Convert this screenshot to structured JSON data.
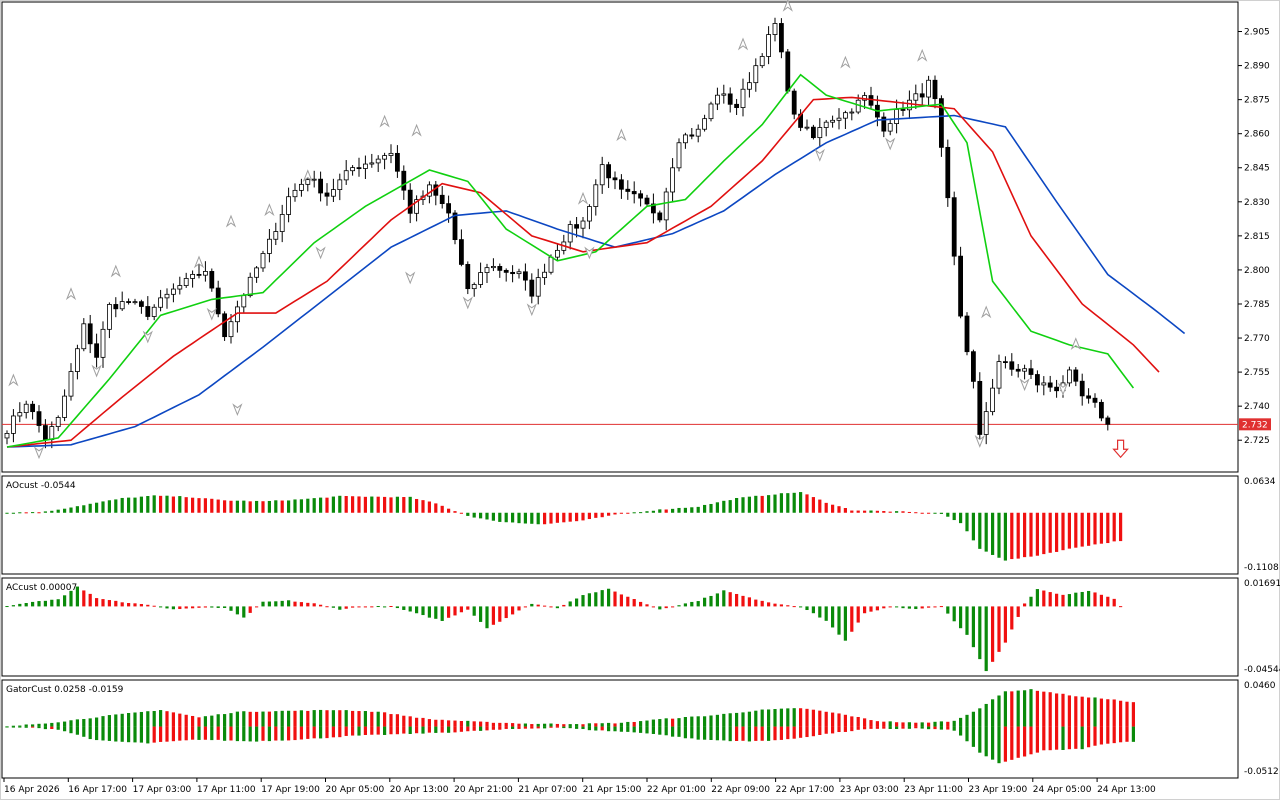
{
  "colors": {
    "background": "#ffffff",
    "frame": "#000000",
    "bull_body": "#ffffff",
    "bear_body": "#000000",
    "candle_outline": "#000000",
    "jaw": "#0c47c2",
    "teeth": "#e01010",
    "lips": "#10d010",
    "histogram_up": "#0a8a0a",
    "histogram_down": "#f01010",
    "price_line": "#e03030",
    "fractal": "#a0a0a0",
    "sell_arrow": "#e03030"
  },
  "chart_data": [
    {
      "type": "candlestick",
      "name": "price",
      "ylim": [
        2.711,
        2.918
      ],
      "y_ticks": [
        "2.905",
        "2.890",
        "2.875",
        "2.860",
        "2.845",
        "2.830",
        "2.815",
        "2.800",
        "2.785",
        "2.770",
        "2.755",
        "2.740",
        "2.725"
      ],
      "current_price": {
        "value": 2.732,
        "label": "2.732"
      },
      "anchors": [
        [
          0,
          2.73
        ],
        [
          3,
          2.742
        ],
        [
          6,
          2.726
        ],
        [
          8,
          2.734
        ],
        [
          12,
          2.775
        ],
        [
          14,
          2.762
        ],
        [
          16,
          2.784
        ],
        [
          19,
          2.786
        ],
        [
          22,
          2.781
        ],
        [
          26,
          2.791
        ],
        [
          31,
          2.8
        ],
        [
          34,
          2.772
        ],
        [
          36,
          2.784
        ],
        [
          38,
          2.795
        ],
        [
          41,
          2.812
        ],
        [
          44,
          2.832
        ],
        [
          47,
          2.841
        ],
        [
          50,
          2.833
        ],
        [
          54,
          2.845
        ],
        [
          57,
          2.848
        ],
        [
          60,
          2.852
        ],
        [
          63,
          2.826
        ],
        [
          66,
          2.836
        ],
        [
          69,
          2.825
        ],
        [
          72,
          2.79
        ],
        [
          75,
          2.802
        ],
        [
          80,
          2.798
        ],
        [
          82,
          2.79
        ],
        [
          85,
          2.806
        ],
        [
          88,
          2.818
        ],
        [
          90,
          2.821
        ],
        [
          93,
          2.846
        ],
        [
          96,
          2.834
        ],
        [
          98,
          2.832
        ],
        [
          102,
          2.824
        ],
        [
          105,
          2.858
        ],
        [
          108,
          2.861
        ],
        [
          111,
          2.878
        ],
        [
          114,
          2.872
        ],
        [
          117,
          2.89
        ],
        [
          120,
          2.908
        ],
        [
          123,
          2.867
        ],
        [
          126,
          2.858
        ],
        [
          128,
          2.866
        ],
        [
          131,
          2.869
        ],
        [
          134,
          2.876
        ],
        [
          137,
          2.863
        ],
        [
          140,
          2.872
        ],
        [
          143,
          2.878
        ],
        [
          144,
          2.882
        ],
        [
          145,
          2.874
        ],
        [
          147,
          2.83
        ],
        [
          149,
          2.78
        ],
        [
          151,
          2.75
        ],
        [
          152,
          2.726
        ],
        [
          153,
          2.738
        ],
        [
          155,
          2.76
        ],
        [
          157,
          2.756
        ],
        [
          159,
          2.756
        ],
        [
          161,
          2.75
        ],
        [
          164,
          2.748
        ],
        [
          166,
          2.754
        ],
        [
          168,
          2.744
        ],
        [
          170,
          2.74
        ],
        [
          172,
          2.732
        ]
      ],
      "jaw_anchors": [
        [
          0,
          2.722
        ],
        [
          10,
          2.723
        ],
        [
          20,
          2.731
        ],
        [
          30,
          2.745
        ],
        [
          40,
          2.766
        ],
        [
          50,
          2.788
        ],
        [
          60,
          2.81
        ],
        [
          70,
          2.824
        ],
        [
          78,
          2.826
        ],
        [
          86,
          2.818
        ],
        [
          95,
          2.81
        ],
        [
          104,
          2.816
        ],
        [
          112,
          2.826
        ],
        [
          120,
          2.842
        ],
        [
          128,
          2.856
        ],
        [
          136,
          2.866
        ],
        [
          148,
          2.868
        ],
        [
          156,
          2.863
        ],
        [
          164,
          2.83
        ],
        [
          172,
          2.798
        ],
        [
          180,
          2.781
        ],
        [
          184,
          2.772
        ]
      ],
      "teeth_anchors": [
        [
          0,
          2.722
        ],
        [
          10,
          2.725
        ],
        [
          18,
          2.744
        ],
        [
          26,
          2.762
        ],
        [
          36,
          2.781
        ],
        [
          42,
          2.781
        ],
        [
          50,
          2.795
        ],
        [
          60,
          2.822
        ],
        [
          68,
          2.838
        ],
        [
          74,
          2.834
        ],
        [
          82,
          2.815
        ],
        [
          90,
          2.808
        ],
        [
          100,
          2.812
        ],
        [
          110,
          2.828
        ],
        [
          118,
          2.848
        ],
        [
          126,
          2.875
        ],
        [
          132,
          2.876
        ],
        [
          148,
          2.871
        ],
        [
          154,
          2.852
        ],
        [
          160,
          2.815
        ],
        [
          168,
          2.785
        ],
        [
          176,
          2.767
        ],
        [
          180,
          2.755
        ]
      ],
      "lips_anchors": [
        [
          0,
          2.722
        ],
        [
          8,
          2.726
        ],
        [
          16,
          2.752
        ],
        [
          24,
          2.78
        ],
        [
          32,
          2.787
        ],
        [
          40,
          2.79
        ],
        [
          48,
          2.812
        ],
        [
          56,
          2.828
        ],
        [
          66,
          2.844
        ],
        [
          72,
          2.839
        ],
        [
          78,
          2.818
        ],
        [
          86,
          2.804
        ],
        [
          92,
          2.808
        ],
        [
          100,
          2.828
        ],
        [
          106,
          2.831
        ],
        [
          112,
          2.848
        ],
        [
          118,
          2.864
        ],
        [
          124,
          2.886
        ],
        [
          128,
          2.877
        ],
        [
          136,
          2.87
        ],
        [
          146,
          2.873
        ],
        [
          150,
          2.856
        ],
        [
          154,
          2.795
        ],
        [
          160,
          2.773
        ],
        [
          166,
          2.767
        ],
        [
          172,
          2.763
        ],
        [
          176,
          2.748
        ]
      ],
      "fractals_up": [
        [
          1,
          2.752
        ],
        [
          10,
          2.79
        ],
        [
          17,
          2.8
        ],
        [
          30,
          2.804
        ],
        [
          35,
          2.822
        ],
        [
          41,
          2.827
        ],
        [
          47,
          2.842
        ],
        [
          59,
          2.866
        ],
        [
          64,
          2.862
        ],
        [
          90,
          2.832
        ],
        [
          96,
          2.86
        ],
        [
          115,
          2.9
        ],
        [
          122,
          2.917
        ],
        [
          131,
          2.892
        ],
        [
          143,
          2.895
        ],
        [
          153,
          2.782
        ],
        [
          167,
          2.768
        ]
      ],
      "fractals_down": [
        [
          5,
          2.719
        ],
        [
          14,
          2.755
        ],
        [
          22,
          2.77
        ],
        [
          32,
          2.78
        ],
        [
          36,
          2.738
        ],
        [
          49,
          2.807
        ],
        [
          63,
          2.796
        ],
        [
          72,
          2.785
        ],
        [
          82,
          2.782
        ],
        [
          91,
          2.807
        ],
        [
          127,
          2.85
        ],
        [
          138,
          2.855
        ],
        [
          152,
          2.724
        ],
        [
          159,
          2.749
        ],
        [
          165,
          2.747
        ]
      ],
      "sell_signal": {
        "index": 174,
        "price": 2.725
      }
    },
    {
      "type": "bar",
      "name": "AOcust",
      "label": "AOcust -0.0544",
      "ylim": [
        -0.1108,
        0.0634
      ],
      "y_tick_labels": [
        "0.0634",
        "-0.1108"
      ],
      "anchors": [
        [
          0,
          0.0
        ],
        [
          6,
          0.002
        ],
        [
          12,
          0.015
        ],
        [
          18,
          0.028
        ],
        [
          23,
          0.033
        ],
        [
          28,
          0.031
        ],
        [
          34,
          0.024
        ],
        [
          40,
          0.022
        ],
        [
          46,
          0.026
        ],
        [
          52,
          0.032
        ],
        [
          58,
          0.031
        ],
        [
          63,
          0.03
        ],
        [
          67,
          0.018
        ],
        [
          72,
          -0.006
        ],
        [
          76,
          -0.016
        ],
        [
          80,
          -0.02
        ],
        [
          84,
          -0.022
        ],
        [
          90,
          -0.015
        ],
        [
          96,
          -0.002
        ],
        [
          102,
          0.006
        ],
        [
          108,
          0.012
        ],
        [
          114,
          0.028
        ],
        [
          120,
          0.036
        ],
        [
          124,
          0.04
        ],
        [
          128,
          0.02
        ],
        [
          132,
          0.005
        ],
        [
          140,
          0.002
        ],
        [
          146,
          -0.002
        ],
        [
          149,
          -0.02
        ],
        [
          152,
          -0.07
        ],
        [
          156,
          -0.092
        ],
        [
          160,
          -0.085
        ],
        [
          164,
          -0.075
        ],
        [
          168,
          -0.065
        ],
        [
          172,
          -0.058
        ],
        [
          174,
          -0.054
        ]
      ]
    },
    {
      "type": "bar",
      "name": "ACcust",
      "label": "ACcust 0.00007",
      "ylim": [
        -0.04544,
        0.01691
      ],
      "y_tick_labels": [
        "0.01691",
        "-0.04544"
      ],
      "anchors": [
        [
          0,
          0.0
        ],
        [
          4,
          0.003
        ],
        [
          8,
          0.005
        ],
        [
          11,
          0.014
        ],
        [
          14,
          0.006
        ],
        [
          18,
          0.003
        ],
        [
          22,
          0.001
        ],
        [
          26,
          -0.002
        ],
        [
          30,
          -0.001
        ],
        [
          34,
          -0.001
        ],
        [
          37,
          -0.008
        ],
        [
          40,
          0.003
        ],
        [
          44,
          0.004
        ],
        [
          48,
          0.002
        ],
        [
          52,
          -0.002
        ],
        [
          56,
          0.0
        ],
        [
          60,
          0.0
        ],
        [
          64,
          -0.005
        ],
        [
          68,
          -0.01
        ],
        [
          72,
          -0.002
        ],
        [
          75,
          -0.015
        ],
        [
          78,
          -0.008
        ],
        [
          82,
          0.002
        ],
        [
          86,
          -0.001
        ],
        [
          90,
          0.008
        ],
        [
          94,
          0.012
        ],
        [
          98,
          0.005
        ],
        [
          102,
          -0.002
        ],
        [
          108,
          0.004
        ],
        [
          112,
          0.011
        ],
        [
          116,
          0.006
        ],
        [
          120,
          0.002
        ],
        [
          124,
          0.0
        ],
        [
          128,
          -0.01
        ],
        [
          131,
          -0.024
        ],
        [
          134,
          -0.005
        ],
        [
          138,
          0.0
        ],
        [
          142,
          -0.002
        ],
        [
          146,
          0.0
        ],
        [
          150,
          -0.02
        ],
        [
          153,
          -0.045
        ],
        [
          156,
          -0.025
        ],
        [
          159,
          0.002
        ],
        [
          161,
          0.012
        ],
        [
          165,
          0.008
        ],
        [
          169,
          0.011
        ],
        [
          173,
          0.005
        ],
        [
          174,
          7e-05
        ]
      ]
    },
    {
      "type": "bar",
      "name": "GatorCust",
      "label": "GatorCust 0.0258 -0.0159",
      "ylim": [
        -0.0512,
        0.046
      ],
      "y_tick_labels": [
        "0.0460",
        "-0.0512"
      ],
      "upper_anchors": [
        [
          0,
          0.0
        ],
        [
          8,
          0.005
        ],
        [
          16,
          0.012
        ],
        [
          24,
          0.018
        ],
        [
          30,
          0.01
        ],
        [
          36,
          0.016
        ],
        [
          44,
          0.017
        ],
        [
          52,
          0.018
        ],
        [
          58,
          0.016
        ],
        [
          66,
          0.008
        ],
        [
          74,
          0.005
        ],
        [
          82,
          0.003
        ],
        [
          90,
          0.003
        ],
        [
          96,
          0.004
        ],
        [
          102,
          0.008
        ],
        [
          110,
          0.012
        ],
        [
          118,
          0.018
        ],
        [
          124,
          0.02
        ],
        [
          130,
          0.014
        ],
        [
          136,
          0.006
        ],
        [
          142,
          0.004
        ],
        [
          148,
          0.006
        ],
        [
          152,
          0.02
        ],
        [
          156,
          0.038
        ],
        [
          160,
          0.04
        ],
        [
          164,
          0.036
        ],
        [
          168,
          0.032
        ],
        [
          172,
          0.03
        ],
        [
          176,
          0.026
        ]
      ],
      "lower_anchors": [
        [
          0,
          0.0
        ],
        [
          8,
          -0.003
        ],
        [
          14,
          -0.015
        ],
        [
          22,
          -0.018
        ],
        [
          30,
          -0.014
        ],
        [
          38,
          -0.016
        ],
        [
          46,
          -0.014
        ],
        [
          54,
          -0.01
        ],
        [
          62,
          -0.008
        ],
        [
          70,
          -0.006
        ],
        [
          78,
          -0.003
        ],
        [
          86,
          -0.001
        ],
        [
          92,
          -0.004
        ],
        [
          100,
          -0.007
        ],
        [
          108,
          -0.014
        ],
        [
          116,
          -0.016
        ],
        [
          122,
          -0.014
        ],
        [
          128,
          -0.008
        ],
        [
          134,
          -0.003
        ],
        [
          142,
          -0.002
        ],
        [
          148,
          -0.004
        ],
        [
          152,
          -0.028
        ],
        [
          155,
          -0.04
        ],
        [
          158,
          -0.034
        ],
        [
          162,
          -0.026
        ],
        [
          168,
          -0.024
        ],
        [
          172,
          -0.018
        ],
        [
          176,
          -0.016
        ]
      ]
    }
  ],
  "time_axis": {
    "labels": [
      "16 Apr 2026",
      "16 Apr 17:00",
      "17 Apr 03:00",
      "17 Apr 11:00",
      "17 Apr 19:00",
      "20 Apr 05:00",
      "20 Apr 13:00",
      "20 Apr 21:00",
      "21 Apr 07:00",
      "21 Apr 15:00",
      "22 Apr 01:00",
      "22 Apr 09:00",
      "22 Apr 17:00",
      "23 Apr 03:00",
      "23 Apr 11:00",
      "23 Apr 19:00",
      "24 Apr 05:00",
      "24 Apr 13:00"
    ]
  }
}
